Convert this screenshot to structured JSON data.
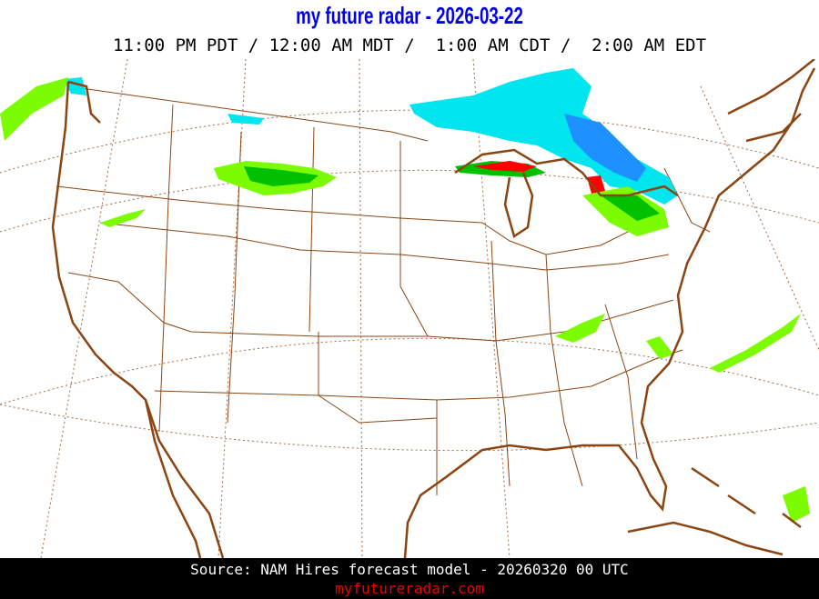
{
  "header": {
    "title": "my future radar - 2026-03-22",
    "times": "11:00 PM PDT / 12:00 AM MDT /  1:00 AM CDT /  2:00 AM EDT"
  },
  "map": {
    "region": "contiguous United States",
    "colors": {
      "coast": "#8b4513",
      "borders": "#8b4513",
      "graticule": "#8b4513",
      "snow": "#00e5ee",
      "snow_heavy": "#1e90ff",
      "rain_light": "#7cfc00",
      "rain_moderate": "#00c000",
      "heavy": "#ff0000"
    }
  },
  "footer": {
    "source": "Source: NAM Hires forecast model - 20260320 00 UTC",
    "site": "myfutureradar.com"
  }
}
